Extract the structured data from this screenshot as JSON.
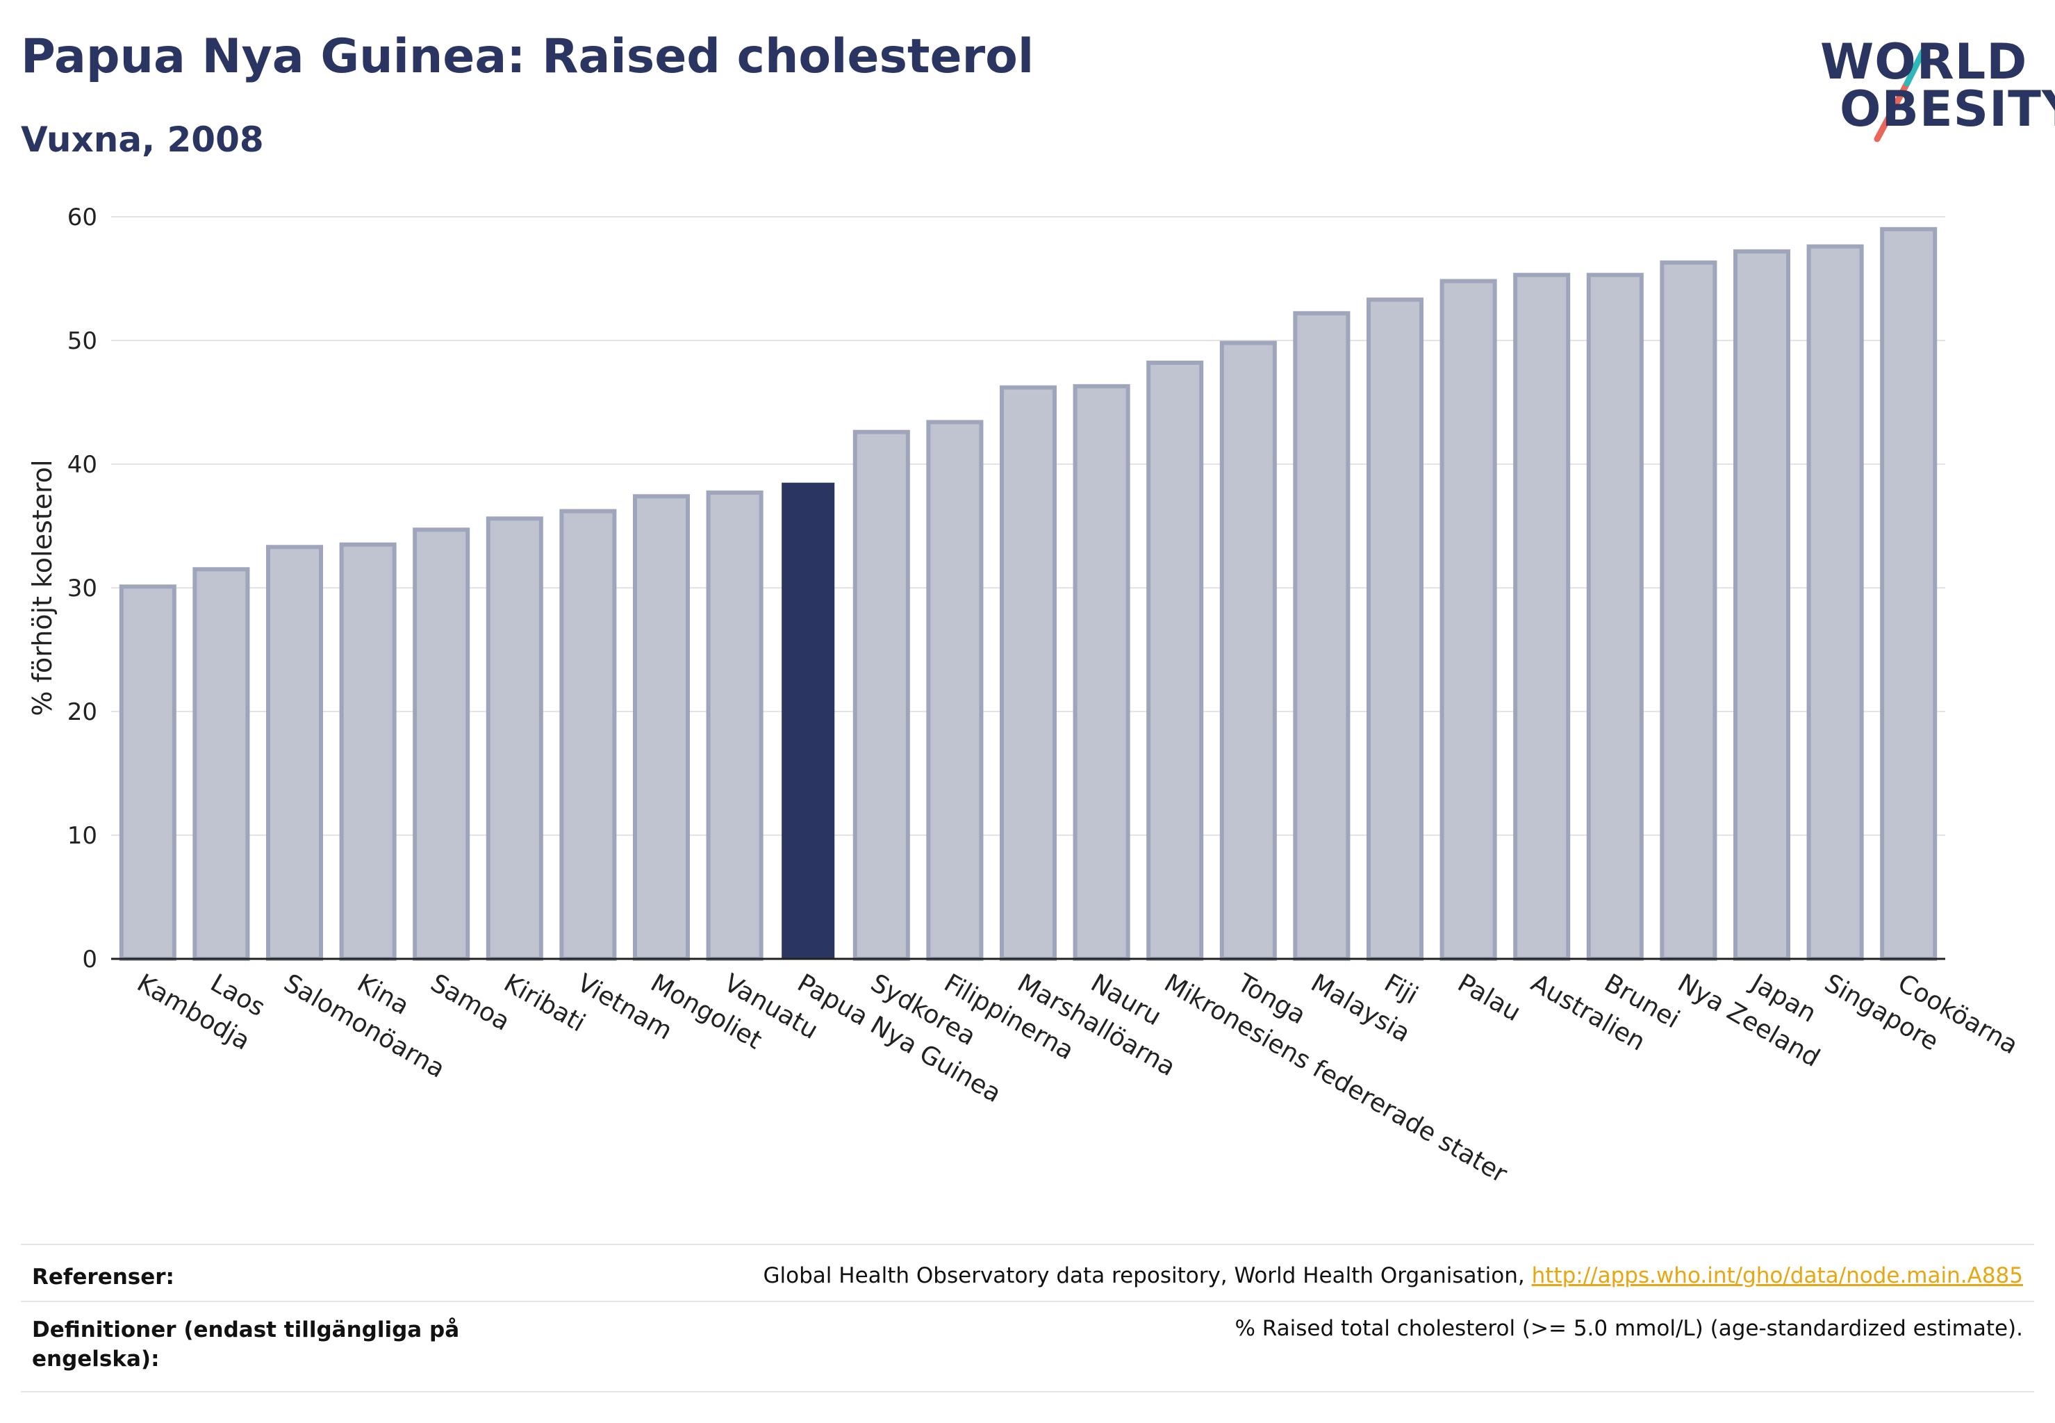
{
  "header": {
    "title": "Papua Nya Guinea: Raised cholesterol",
    "subtitle": "Vuxna, 2008"
  },
  "logo": {
    "line1": "WORLD",
    "line2": "OBESITY",
    "colors": {
      "navy": "#2a3561",
      "teal": "#2fb8b8",
      "coral": "#e8675a"
    }
  },
  "chart_data": {
    "type": "bar",
    "ylabel": "% förhöjt kolesterol",
    "xlabel": "",
    "ylim": [
      0,
      60
    ],
    "yticks": [
      0,
      10,
      20,
      30,
      40,
      50,
      60
    ],
    "grid": true,
    "highlight": "Papua Nya Guinea",
    "colors": {
      "bar": "#c0c4d1",
      "bar_edge": "#9fa5ba",
      "highlight": "#2a3561"
    },
    "categories": [
      "Kambodja",
      "Laos",
      "Salomonöarna",
      "Kina",
      "Samoa",
      "Kiribati",
      "Vietnam",
      "Mongoliet",
      "Vanuatu",
      "Papua Nya Guinea",
      "Sydkorea",
      "Filippinerna",
      "Marshallöarna",
      "Nauru",
      "Mikronesiens federerade stater",
      "Tonga",
      "Malaysia",
      "Fiji",
      "Palau",
      "Australien",
      "Brunei",
      "Nya Zeeland",
      "Japan",
      "Singapore",
      "Cooköarna"
    ],
    "values": [
      30.1,
      31.5,
      33.3,
      33.5,
      34.7,
      35.6,
      36.2,
      37.4,
      37.7,
      38.5,
      42.6,
      43.4,
      46.2,
      46.3,
      48.2,
      49.8,
      52.2,
      53.3,
      54.8,
      55.3,
      55.3,
      56.3,
      57.2,
      57.6,
      59.0
    ]
  },
  "footer": {
    "references_label": "Referenser:",
    "references_text": "Global Health Observatory data repository, World Health Organisation, ",
    "references_link": "http://apps.who.int/gho/data/node.main.A885",
    "definitions_label": "Definitioner (endast tillgängliga på engelska):",
    "definitions_text": "% Raised total cholesterol (>= 5.0 mmol/L) (age-standardized estimate)."
  }
}
